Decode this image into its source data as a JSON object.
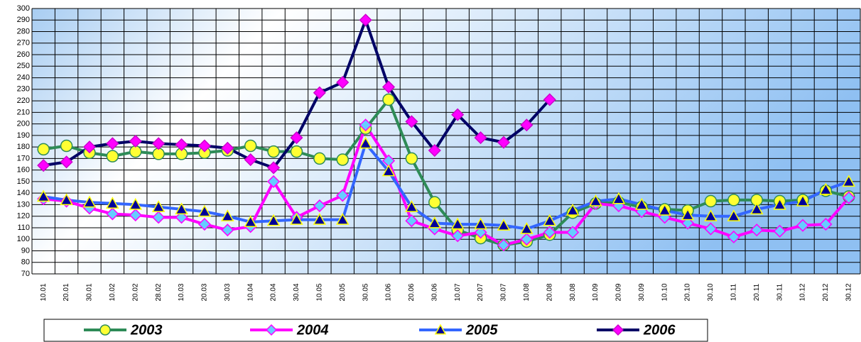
{
  "chart_data": {
    "type": "line",
    "categories": [
      "10.01",
      "20.01",
      "30.01",
      "10.02",
      "20.02",
      "28.02",
      "10.03",
      "20.03",
      "30.03",
      "10.04",
      "20.04",
      "30.04",
      "10.05",
      "20.05",
      "30.05",
      "10.06",
      "20.06",
      "30.06",
      "10.07",
      "20.07",
      "30.07",
      "10.08",
      "20.08",
      "30.08",
      "10.09",
      "20.09",
      "30.09",
      "10.10",
      "20.10",
      "30.10",
      "10.11",
      "20.11",
      "30.11",
      "10.12",
      "20.12",
      "30.12"
    ],
    "series": [
      {
        "name": "2003",
        "color": "#2e8b57",
        "marker": "circle",
        "marker_color": "#ffff33",
        "marker_stroke": "#2e8b57",
        "values": [
          178,
          181,
          175,
          172,
          176,
          174,
          174,
          175,
          177,
          181,
          176,
          176,
          170,
          169,
          196,
          221,
          170,
          132,
          108,
          101,
          95,
          98,
          104,
          123,
          131,
          132,
          128,
          126,
          125,
          133,
          134,
          134,
          133,
          134,
          142,
          137
        ]
      },
      {
        "name": "2004",
        "color": "#ff00ff",
        "marker": "diamond",
        "marker_color": "#66ccff",
        "marker_stroke": "#ff00ff",
        "values": [
          135,
          133,
          127,
          122,
          121,
          119,
          119,
          113,
          108,
          111,
          150,
          119,
          129,
          138,
          199,
          168,
          116,
          109,
          103,
          106,
          95,
          100,
          106,
          106,
          131,
          129,
          124,
          119,
          114,
          109,
          102,
          108,
          107,
          112,
          113,
          136
        ]
      },
      {
        "name": "2005",
        "color": "#3366ff",
        "marker": "triangle",
        "marker_color": "#000099",
        "marker_stroke": "#ffff00",
        "values": [
          137,
          134,
          132,
          131,
          130,
          128,
          126,
          124,
          120,
          115,
          116,
          117,
          117,
          117,
          183,
          159,
          128,
          114,
          113,
          113,
          112,
          109,
          116,
          125,
          133,
          135,
          130,
          125,
          121,
          120,
          120,
          126,
          130,
          133,
          143,
          150
        ]
      },
      {
        "name": "2006",
        "color": "#000066",
        "marker": "diamond",
        "marker_color": "#ff00ff",
        "marker_stroke": "#cc00cc",
        "values": [
          164,
          167,
          180,
          183,
          185,
          183,
          182,
          181,
          179,
          169,
          162,
          188,
          227,
          236,
          290,
          232,
          202,
          177,
          208,
          188,
          184,
          199,
          221,
          null,
          null,
          null,
          null,
          null,
          null,
          null,
          null,
          null,
          null,
          null,
          null,
          null
        ]
      }
    ],
    "ylim": [
      70,
      300
    ],
    "yticks": [
      70,
      80,
      90,
      100,
      110,
      120,
      130,
      140,
      150,
      160,
      170,
      180,
      190,
      200,
      210,
      220,
      230,
      240,
      250,
      260,
      270,
      280,
      290,
      300
    ],
    "grid": true
  }
}
